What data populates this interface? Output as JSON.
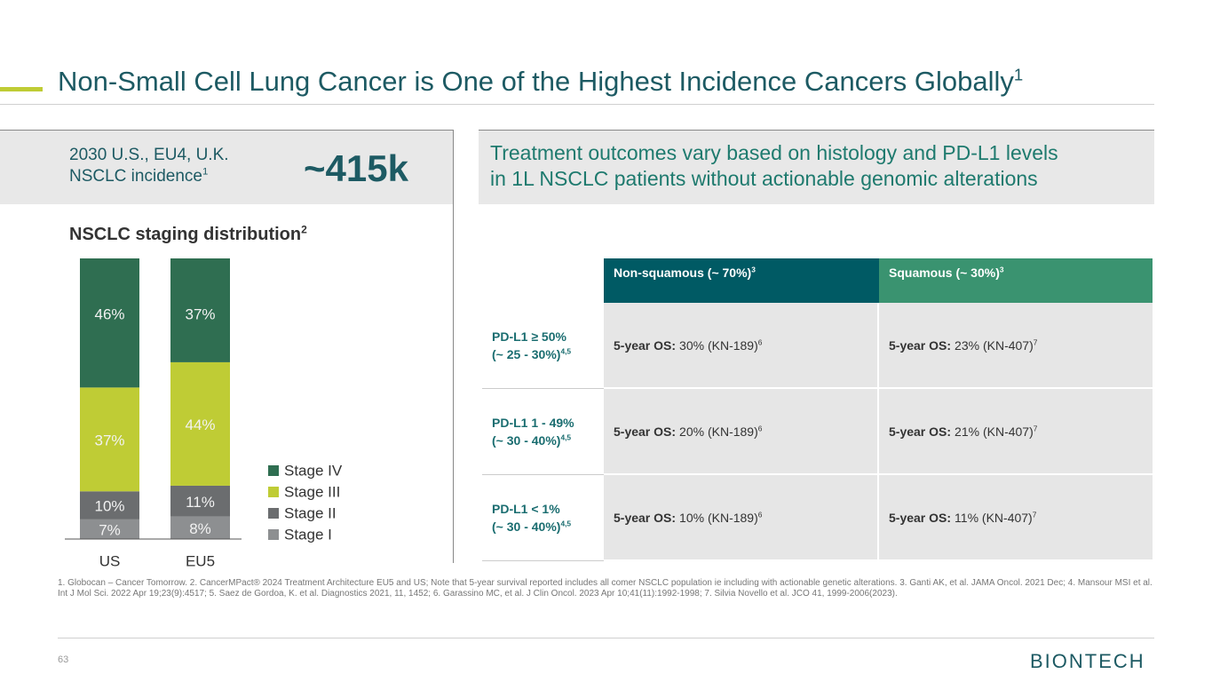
{
  "header": {
    "title": "Non-Small Cell Lung Cancer is One of the Highest Incidence Cancers Globally",
    "title_sup": "1"
  },
  "incidence": {
    "line1": "2030 U.S., EU4, U.K.",
    "line2": "NSCLC incidence",
    "sup": "1",
    "value": "~415k"
  },
  "chart_data": {
    "type": "bar",
    "stacked": true,
    "title": "NSCLC staging distribution",
    "title_sup": "2",
    "categories": [
      "US",
      "EU5"
    ],
    "ylim": [
      0,
      100
    ],
    "series": [
      {
        "name": "Stage I",
        "color": "#8d8f91",
        "values": [
          7,
          8
        ],
        "value_labels": [
          "7%",
          "8%"
        ]
      },
      {
        "name": "Stage II",
        "color": "#6b6d6f",
        "values": [
          10,
          11
        ],
        "value_labels": [
          "10%",
          "11%"
        ]
      },
      {
        "name": "Stage III",
        "color": "#bfcc35",
        "values": [
          37,
          44
        ],
        "value_labels": [
          "37%",
          "44%"
        ]
      },
      {
        "name": "Stage IV",
        "color": "#2f6e51",
        "values": [
          46,
          37
        ],
        "value_labels": [
          "46%",
          "37%"
        ]
      }
    ]
  },
  "outcomes": {
    "line1": "Treatment outcomes vary based on histology and PD-L1 levels",
    "line2": "in 1L NSCLC patients without actionable genomic alterations"
  },
  "table": {
    "columns": [
      {
        "text": "Non-squamous (~ 70%)",
        "sup": "3"
      },
      {
        "text": "Squamous (~ 30%)",
        "sup": "3"
      }
    ],
    "rows": [
      {
        "label1": "PD-L1 ≥ 50%",
        "label2": "(~ 25 - 30%)",
        "sup": "4,5",
        "cells": [
          {
            "bold": "5-year OS:",
            "text": "30% (KN-189)",
            "sup": "6"
          },
          {
            "bold": "5-year OS:",
            "text": "23% (KN-407)",
            "sup": "7"
          }
        ]
      },
      {
        "label1": "PD-L1 1 - 49%",
        "label2": "(~ 30 - 40%)",
        "sup": "4,5",
        "cells": [
          {
            "bold": "5-year OS:",
            "text": "20% (KN-189)",
            "sup": "6"
          },
          {
            "bold": "5-year OS:",
            "text": "21% (KN-407)",
            "sup": "7"
          }
        ]
      },
      {
        "label1": "PD-L1 < 1%",
        "label2": "(~ 30 - 40%)",
        "sup": "4,5",
        "cells": [
          {
            "bold": "5-year OS:",
            "text": "10% (KN-189)",
            "sup": "6"
          },
          {
            "bold": "5-year OS:",
            "text": "11% (KN-407)",
            "sup": "7"
          }
        ]
      }
    ]
  },
  "footnote": "1. Globocan – Cancer Tomorrow.  2. CancerMPact® 2024 Treatment Architecture EU5 and US; Note that 5-year survival reported includes all comer NSCLC population ie including with actionable genetic alterations. 3. Ganti AK, et al. JAMA Oncol. 2021 Dec; 4. Mansour MSI et al. Int J Mol Sci. 2022 Apr 19;23(9):4517; 5. Saez de Gordoa, K. et al. Diagnostics 2021, 11, 1452; 6. Garassino MC, et al. J Clin Oncol. 2023 Apr 10;41(11):1992-1998; 7. Silvia Novello et al. JCO 41, 1999-2006(2023).",
  "page_number": "63",
  "logo": "BIONTECH"
}
